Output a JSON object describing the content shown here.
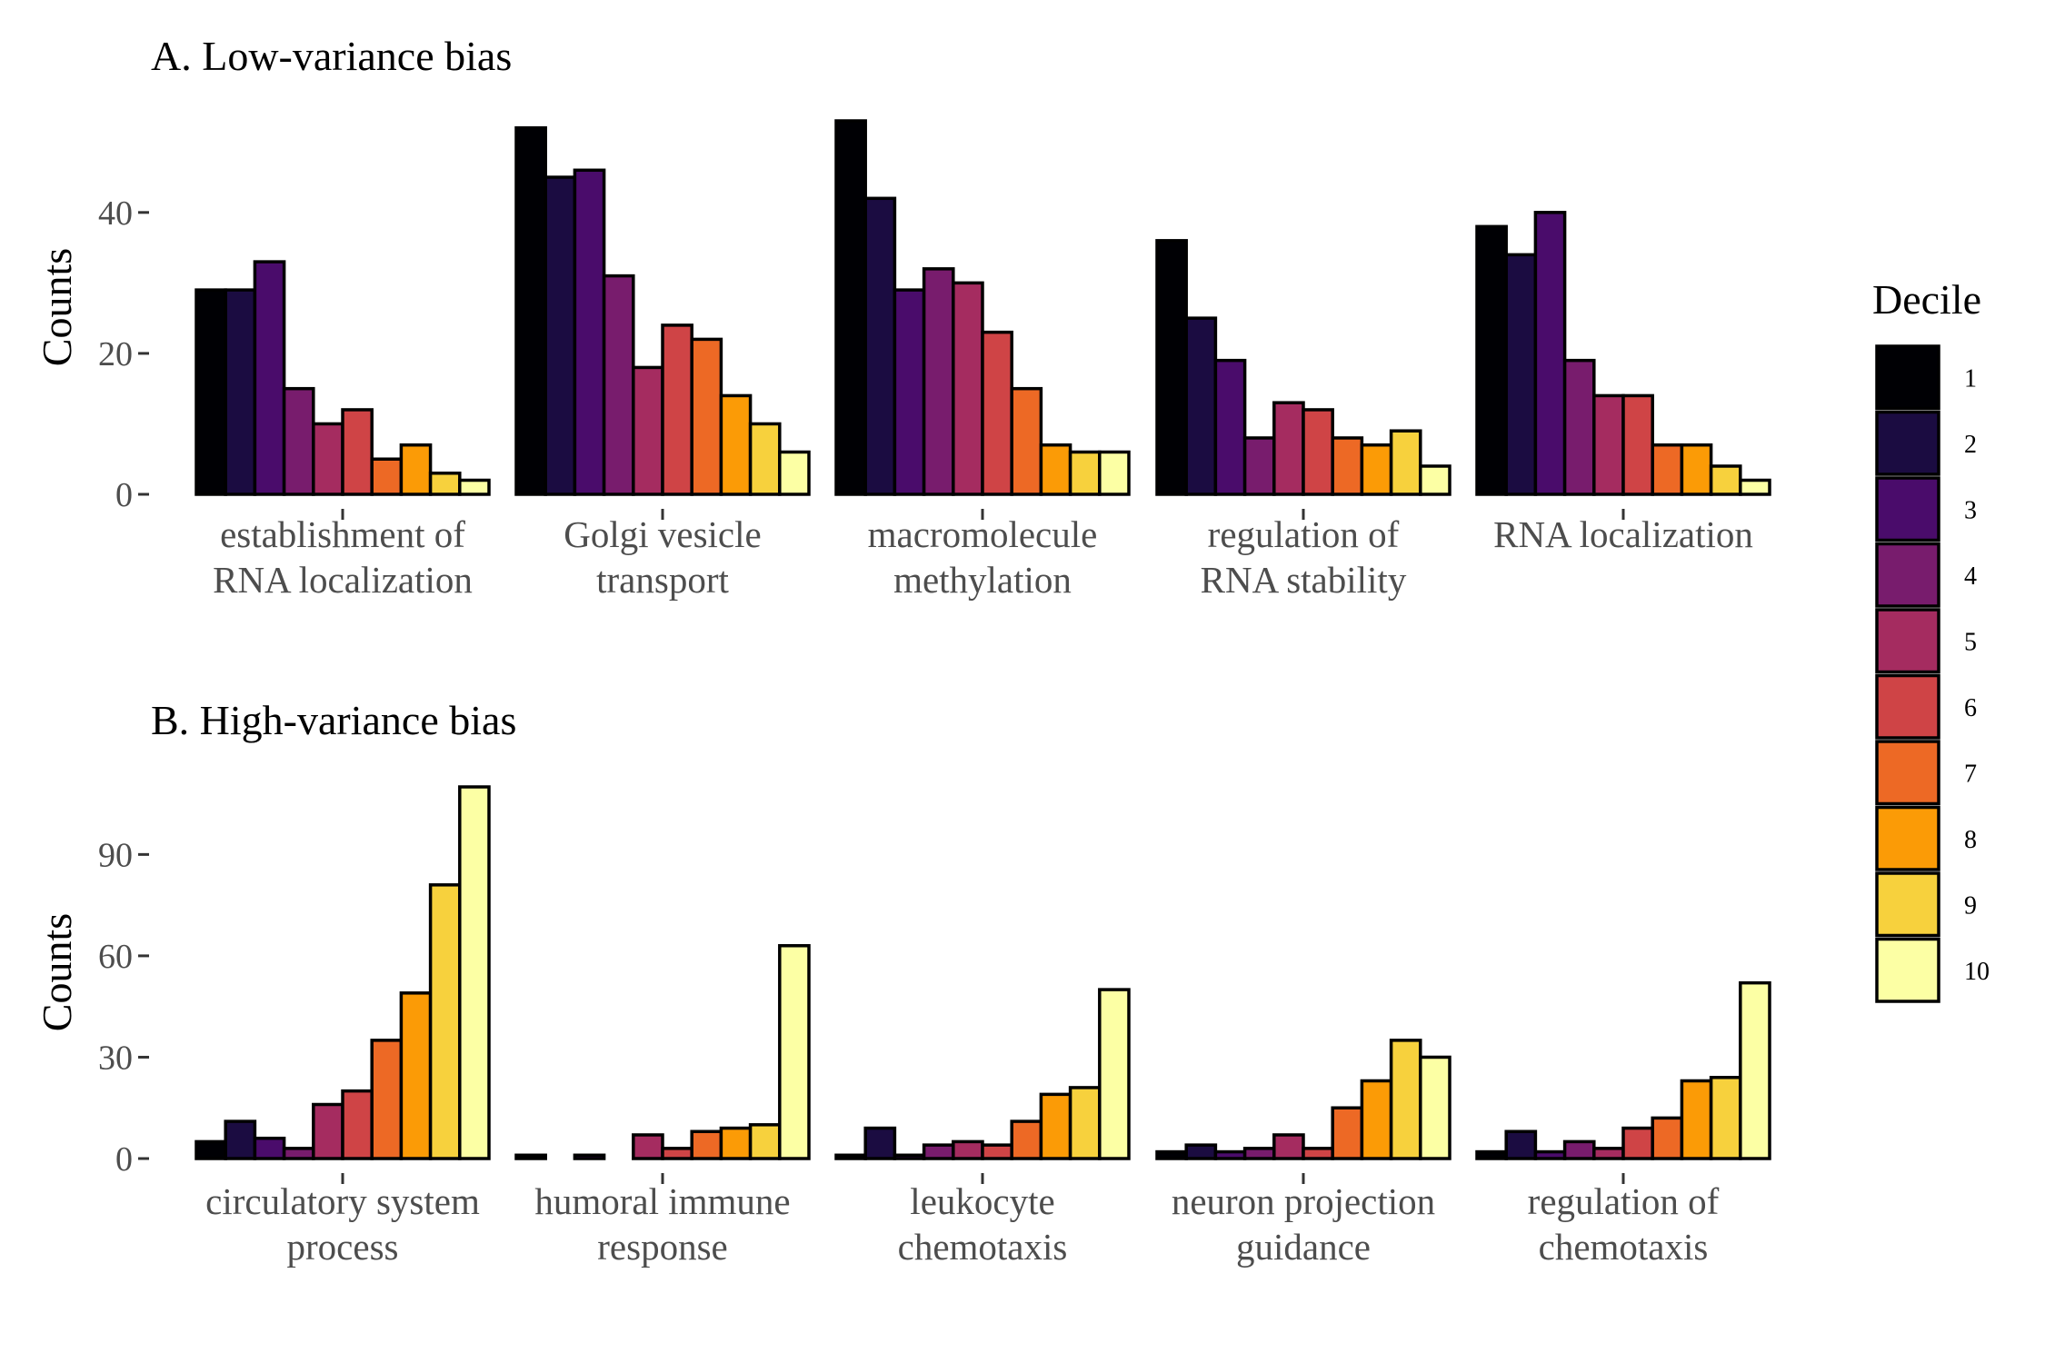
{
  "colors": [
    "#000004",
    "#1b0c41",
    "#4a0c6b",
    "#781c6d",
    "#a52c60",
    "#cf4446",
    "#ed6925",
    "#fb9b06",
    "#f7d13d",
    "#fcffa4"
  ],
  "legend": {
    "title": "Decile",
    "labels": [
      "1",
      "2",
      "3",
      "4",
      "5",
      "6",
      "7",
      "8",
      "9",
      "10"
    ]
  },
  "chart_data": [
    {
      "type": "bar",
      "title": "A. Low-variance bias",
      "ylabel": "Counts",
      "ylim": [
        0,
        53
      ],
      "yticks": [
        0,
        20,
        40
      ],
      "yticklabels": [
        "0",
        "20",
        "40"
      ],
      "series_names": [
        "1",
        "2",
        "3",
        "4",
        "5",
        "6",
        "7",
        "8",
        "9",
        "10"
      ],
      "categories": [
        {
          "label": [
            "establishment of",
            "RNA localization"
          ],
          "values": [
            29,
            29,
            33,
            15,
            10,
            12,
            5,
            7,
            3,
            2
          ]
        },
        {
          "label": [
            "Golgi vesicle",
            "transport"
          ],
          "values": [
            52,
            45,
            46,
            31,
            18,
            24,
            22,
            14,
            10,
            6
          ]
        },
        {
          "label": [
            "macromolecule",
            "methylation"
          ],
          "values": [
            53,
            42,
            29,
            32,
            30,
            23,
            15,
            7,
            6,
            6
          ]
        },
        {
          "label": [
            "regulation of",
            "RNA stability"
          ],
          "values": [
            36,
            25,
            19,
            8,
            13,
            12,
            8,
            7,
            9,
            4
          ]
        },
        {
          "label": [
            "RNA localization"
          ],
          "values": [
            38,
            34,
            40,
            19,
            14,
            14,
            7,
            7,
            4,
            2
          ]
        }
      ]
    },
    {
      "type": "bar",
      "title": "B. High-variance bias",
      "ylabel": "Counts",
      "ylim": [
        0,
        110
      ],
      "yticks": [
        0,
        30,
        60,
        90
      ],
      "yticklabels": [
        "0",
        "30",
        "60",
        "90"
      ],
      "series_names": [
        "1",
        "2",
        "3",
        "4",
        "5",
        "6",
        "7",
        "8",
        "9",
        "10"
      ],
      "categories": [
        {
          "label": [
            "circulatory system",
            "process"
          ],
          "values": [
            5,
            11,
            6,
            3,
            16,
            20,
            35,
            49,
            81,
            110
          ]
        },
        {
          "label": [
            "humoral immune",
            "response"
          ],
          "values": [
            1,
            0,
            1,
            0,
            7,
            3,
            8,
            9,
            10,
            63
          ]
        },
        {
          "label": [
            "leukocyte",
            "chemotaxis"
          ],
          "values": [
            1,
            9,
            1,
            4,
            5,
            4,
            11,
            19,
            21,
            50
          ]
        },
        {
          "label": [
            "neuron projection",
            "guidance"
          ],
          "values": [
            2,
            4,
            2,
            3,
            7,
            3,
            15,
            23,
            35,
            30
          ]
        },
        {
          "label": [
            "regulation of",
            "chemotaxis"
          ],
          "values": [
            2,
            8,
            2,
            5,
            3,
            9,
            12,
            23,
            24,
            52
          ]
        }
      ]
    }
  ]
}
